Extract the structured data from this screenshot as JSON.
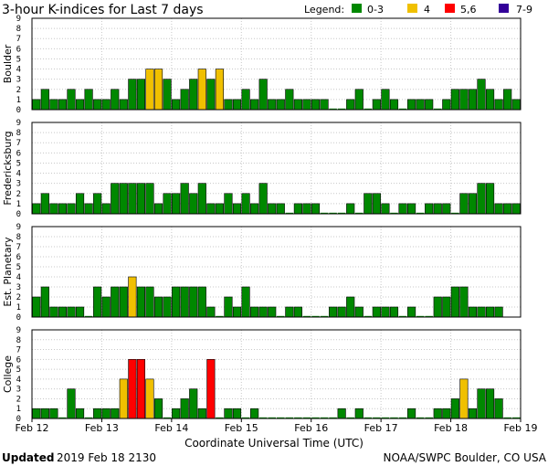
{
  "title": "3-hour K-indices for Last 7 days",
  "legend": {
    "label": "Legend:",
    "items": [
      {
        "label": "0-3",
        "color": "#008800"
      },
      {
        "label": "4",
        "color": "#f0c000"
      },
      {
        "label": "5,6",
        "color": "#ff0000"
      },
      {
        "label": "7-9",
        "color": "#330099"
      }
    ]
  },
  "footer": {
    "updated_label": "Updated",
    "updated_value": "2019 Feb 18 2130",
    "credit": "NOAA/SWPC Boulder, CO USA"
  },
  "chart_data": {
    "type": "bar",
    "xlabel": "Coordinate Universal Time (UTC)",
    "x_ticks": [
      "Feb 12",
      "Feb 13",
      "Feb 14",
      "Feb 15",
      "Feb 16",
      "Feb 17",
      "Feb 18",
      "Feb 19"
    ],
    "y_ticks": [
      0,
      1,
      2,
      3,
      4,
      5,
      6,
      7,
      8,
      9
    ],
    "ylim": [
      0,
      9
    ],
    "bins_per_day": 8,
    "num_bins": 56,
    "grid": true,
    "series": [
      {
        "name": "Boulder",
        "values": [
          1,
          2,
          1,
          1,
          2,
          1,
          2,
          1,
          1,
          2,
          1,
          3,
          3,
          4,
          4,
          3,
          1,
          2,
          3,
          4,
          3,
          4,
          1,
          1,
          2,
          1,
          3,
          1,
          1,
          2,
          1,
          1,
          1,
          1,
          0,
          0,
          1,
          2,
          0,
          1,
          2,
          1,
          0,
          1,
          1,
          1,
          0,
          1,
          2,
          2,
          2,
          3,
          2,
          1,
          2,
          1
        ]
      },
      {
        "name": "Fredericksburg",
        "values": [
          1,
          2,
          1,
          1,
          1,
          2,
          1,
          2,
          1,
          3,
          3,
          3,
          3,
          3,
          1,
          2,
          2,
          3,
          2,
          3,
          1,
          1,
          2,
          1,
          2,
          1,
          3,
          1,
          1,
          0,
          1,
          1,
          1,
          0,
          0,
          0,
          1,
          0,
          2,
          2,
          1,
          0,
          1,
          1,
          0,
          1,
          1,
          1,
          0,
          2,
          2,
          3,
          3,
          1,
          1,
          1
        ]
      },
      {
        "name": "Est. Planetary",
        "values": [
          2,
          3,
          1,
          1,
          1,
          1,
          0,
          3,
          2,
          3,
          3,
          4,
          3,
          3,
          2,
          2,
          3,
          3,
          3,
          3,
          1,
          0,
          2,
          1,
          3,
          1,
          1,
          1,
          0,
          1,
          1,
          0,
          0,
          0,
          1,
          1,
          2,
          1,
          0,
          1,
          1,
          1,
          0,
          1,
          0,
          0,
          2,
          2,
          3,
          3,
          1,
          1,
          1,
          1
        ]
      },
      {
        "name": "College",
        "values": [
          1,
          1,
          1,
          0,
          3,
          1,
          0,
          1,
          1,
          1,
          4,
          6,
          6,
          4,
          2,
          0,
          1,
          2,
          3,
          1,
          6,
          0,
          1,
          1,
          0,
          1,
          0,
          0,
          0,
          0,
          0,
          0,
          0,
          0,
          0,
          1,
          0,
          1,
          0,
          0,
          0,
          0,
          0,
          1,
          0,
          0,
          1,
          1,
          2,
          4,
          1,
          3,
          3,
          2,
          0,
          0
        ]
      }
    ]
  }
}
